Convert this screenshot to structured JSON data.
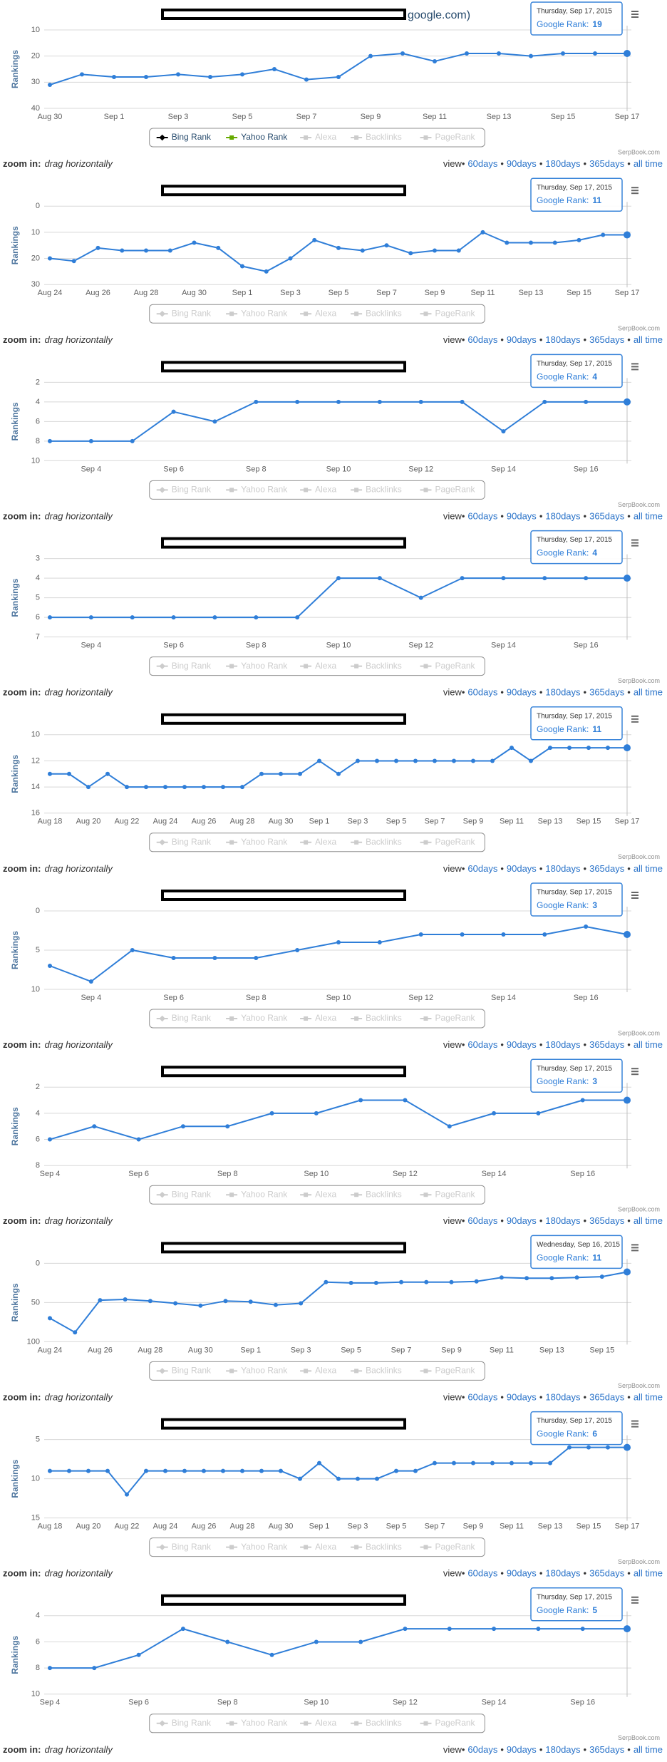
{
  "common": {
    "y_label": "Rankings",
    "credits": "SerpBook.com",
    "zoom_label": "zoom in:",
    "zoom_hint": "drag horizontally",
    "view_label": "view•",
    "view_links": [
      "60days",
      "90days",
      "180days",
      "365days",
      "all time"
    ],
    "view_sep": "•",
    "tooltip_label": "Google Rank:",
    "legend": [
      {
        "name": "Bing Rank",
        "color": "#000000"
      },
      {
        "name": "Yahoo Rank",
        "color": "#66aa00"
      },
      {
        "name": "Alexa"
      },
      {
        "name": "Backlinks"
      },
      {
        "name": "PageRank"
      }
    ]
  },
  "chart_data": [
    {
      "type": "line",
      "title": "google.com)",
      "categories": [
        "Aug 30",
        null,
        "Sep 1",
        null,
        "Sep 3",
        null,
        "Sep 5",
        null,
        "Sep 7",
        null,
        "Sep 9",
        null,
        "Sep 11",
        null,
        "Sep 13",
        null,
        "Sep 15",
        null,
        "Sep 17"
      ],
      "series": [
        {
          "color": "#2f7ed8",
          "values": [
            31,
            27,
            28,
            28,
            27,
            28,
            27,
            25,
            29,
            28,
            20,
            19,
            22,
            19,
            19,
            20,
            19,
            19,
            19
          ]
        }
      ],
      "ylim": [
        10,
        40
      ],
      "yticks": [
        10,
        20,
        30,
        40
      ],
      "y_reversed": true,
      "grid": true,
      "legend_active": [
        true,
        true,
        false,
        false,
        false
      ],
      "tooltip_date": "Thursday, Sep 17, 2015"
    },
    {
      "type": "line",
      "categories": [
        "Aug 24",
        null,
        "Aug 26",
        null,
        "Aug 28",
        null,
        "Aug 30",
        null,
        "Sep 1",
        null,
        "Sep 3",
        null,
        "Sep 5",
        null,
        "Sep 7",
        null,
        "Sep 9",
        null,
        "Sep 11",
        null,
        "Sep 13",
        null,
        "Sep 15",
        null,
        "Sep 17"
      ],
      "series": [
        {
          "color": "#2f7ed8",
          "values": [
            20,
            21,
            16,
            17,
            17,
            17,
            14,
            16,
            23,
            25,
            20,
            13,
            16,
            17,
            15,
            18,
            17,
            17,
            10,
            14,
            14,
            14,
            13,
            11,
            11
          ]
        }
      ],
      "ylim": [
        0,
        30
      ],
      "yticks": [
        0,
        10,
        20,
        30
      ],
      "y_reversed": true,
      "grid": true,
      "legend_active": [
        false,
        false,
        false,
        false,
        false
      ],
      "tooltip_date": "Thursday, Sep 17, 2015"
    },
    {
      "type": "line",
      "categories": [
        null,
        "Sep 4",
        null,
        "Sep 6",
        null,
        "Sep 8",
        null,
        "Sep 10",
        null,
        "Sep 12",
        null,
        "Sep 14",
        null,
        "Sep 16",
        null
      ],
      "series": [
        {
          "color": "#2f7ed8",
          "values": [
            8,
            8,
            8,
            5,
            6,
            4,
            4,
            4,
            4,
            4,
            4,
            7,
            4,
            4,
            4
          ]
        }
      ],
      "ylim": [
        2,
        10
      ],
      "yticks": [
        2,
        4,
        6,
        8,
        10
      ],
      "y_reversed": true,
      "grid": true,
      "legend_active": [
        false,
        false,
        false,
        false,
        false
      ],
      "tooltip_date": "Thursday, Sep 17, 2015"
    },
    {
      "type": "line",
      "categories": [
        null,
        "Sep 4",
        null,
        "Sep 6",
        null,
        "Sep 8",
        null,
        "Sep 10",
        null,
        "Sep 12",
        null,
        "Sep 14",
        null,
        "Sep 16",
        null
      ],
      "series": [
        {
          "color": "#2f7ed8",
          "values": [
            6,
            6,
            6,
            6,
            6,
            6,
            6,
            4,
            4,
            5,
            4,
            4,
            4,
            4,
            4
          ]
        }
      ],
      "ylim": [
        3,
        7
      ],
      "yticks": [
        3,
        4,
        5,
        6,
        7
      ],
      "y_reversed": true,
      "grid": true,
      "legend_active": [
        false,
        false,
        false,
        false,
        false
      ],
      "tooltip_date": "Thursday, Sep 17, 2015"
    },
    {
      "type": "line",
      "categories": [
        "Aug 18",
        null,
        "Aug 20",
        null,
        "Aug 22",
        null,
        "Aug 24",
        null,
        "Aug 26",
        null,
        "Aug 28",
        null,
        "Aug 30",
        null,
        "Sep 1",
        null,
        "Sep 3",
        null,
        "Sep 5",
        null,
        "Sep 7",
        null,
        "Sep 9",
        null,
        "Sep 11",
        null,
        "Sep 13",
        null,
        "Sep 15",
        null,
        "Sep 17"
      ],
      "series": [
        {
          "color": "#2f7ed8",
          "values": [
            13,
            13,
            14,
            13,
            14,
            14,
            14,
            14,
            14,
            14,
            14,
            13,
            13,
            13,
            12,
            13,
            12,
            12,
            12,
            12,
            12,
            12,
            12,
            12,
            11,
            12,
            11,
            11,
            11,
            11,
            11
          ]
        }
      ],
      "ylim": [
        10,
        16
      ],
      "yticks": [
        10,
        12,
        14,
        16
      ],
      "y_reversed": true,
      "grid": true,
      "legend_active": [
        false,
        false,
        false,
        false,
        false
      ],
      "tooltip_date": "Thursday, Sep 17, 2015"
    },
    {
      "type": "line",
      "categories": [
        null,
        "Sep 4",
        null,
        "Sep 6",
        null,
        "Sep 8",
        null,
        "Sep 10",
        null,
        "Sep 12",
        null,
        "Sep 14",
        null,
        "Sep 16",
        null
      ],
      "series": [
        {
          "color": "#2f7ed8",
          "values": [
            7,
            9,
            5,
            6,
            6,
            6,
            5,
            4,
            4,
            3,
            3,
            3,
            3,
            2,
            3
          ]
        }
      ],
      "ylim": [
        0,
        10
      ],
      "yticks": [
        0,
        5,
        10
      ],
      "y_reversed": true,
      "grid": true,
      "legend_active": [
        false,
        false,
        false,
        false,
        false
      ],
      "tooltip_date": "Thursday, Sep 17, 2015"
    },
    {
      "type": "line",
      "categories": [
        "Sep 4",
        null,
        "Sep 6",
        null,
        "Sep 8",
        null,
        "Sep 10",
        null,
        "Sep 12",
        null,
        "Sep 14",
        null,
        "Sep 16",
        null
      ],
      "series": [
        {
          "color": "#2f7ed8",
          "values": [
            6,
            5,
            6,
            5,
            5,
            4,
            4,
            3,
            3,
            5,
            4,
            4,
            3,
            3
          ]
        }
      ],
      "ylim": [
        2,
        8
      ],
      "yticks": [
        2,
        4,
        6,
        8
      ],
      "y_reversed": true,
      "grid": true,
      "legend_active": [
        false,
        false,
        false,
        false,
        false
      ],
      "tooltip_date": "Thursday, Sep 17, 2015"
    },
    {
      "type": "line",
      "categories": [
        "Aug 24",
        null,
        "Aug 26",
        null,
        "Aug 28",
        null,
        "Aug 30",
        null,
        "Sep 1",
        null,
        "Sep 3",
        null,
        "Sep 5",
        null,
        "Sep 7",
        null,
        "Sep 9",
        null,
        "Sep 11",
        null,
        "Sep 13",
        null,
        "Sep 15",
        null
      ],
      "series": [
        {
          "color": "#2f7ed8",
          "values": [
            70,
            88,
            47,
            46,
            48,
            51,
            54,
            48,
            49,
            53,
            51,
            24,
            25,
            25,
            24,
            24,
            24,
            23,
            18,
            19,
            19,
            18,
            17,
            11
          ]
        }
      ],
      "ylim": [
        0,
        100
      ],
      "yticks": [
        0,
        50,
        100
      ],
      "y_reversed": true,
      "grid": true,
      "legend_active": [
        false,
        false,
        false,
        false,
        false
      ],
      "tooltip_date": "Wednesday, Sep 16, 2015"
    },
    {
      "type": "line",
      "categories": [
        "Aug 18",
        null,
        "Aug 20",
        null,
        "Aug 22",
        null,
        "Aug 24",
        null,
        "Aug 26",
        null,
        "Aug 28",
        null,
        "Aug 30",
        null,
        "Sep 1",
        null,
        "Sep 3",
        null,
        "Sep 5",
        null,
        "Sep 7",
        null,
        "Sep 9",
        null,
        "Sep 11",
        null,
        "Sep 13",
        null,
        "Sep 15",
        null,
        "Sep 17"
      ],
      "series": [
        {
          "color": "#2f7ed8",
          "values": [
            9,
            9,
            9,
            9,
            12,
            9,
            9,
            9,
            9,
            9,
            9,
            9,
            9,
            10,
            8,
            10,
            10,
            10,
            9,
            9,
            8,
            8,
            8,
            8,
            8,
            8,
            8,
            6,
            6,
            6,
            6
          ]
        }
      ],
      "ylim": [
        5,
        15
      ],
      "yticks": [
        5,
        10,
        15
      ],
      "y_reversed": true,
      "grid": true,
      "legend_active": [
        false,
        false,
        false,
        false,
        false
      ],
      "tooltip_date": "Thursday, Sep 17, 2015"
    },
    {
      "type": "line",
      "categories": [
        "Sep 4",
        null,
        "Sep 6",
        null,
        "Sep 8",
        null,
        "Sep 10",
        null,
        "Sep 12",
        null,
        "Sep 14",
        null,
        "Sep 16",
        null
      ],
      "series": [
        {
          "color": "#2f7ed8",
          "values": [
            8,
            8,
            7,
            5,
            6,
            7,
            6,
            6,
            5,
            5,
            5,
            5,
            5,
            5
          ]
        }
      ],
      "ylim": [
        4,
        10
      ],
      "yticks": [
        4,
        6,
        8,
        10
      ],
      "y_reversed": true,
      "grid": true,
      "legend_active": [
        false,
        false,
        false,
        false,
        false
      ],
      "tooltip_date": "Thursday, Sep 17, 2015"
    }
  ]
}
